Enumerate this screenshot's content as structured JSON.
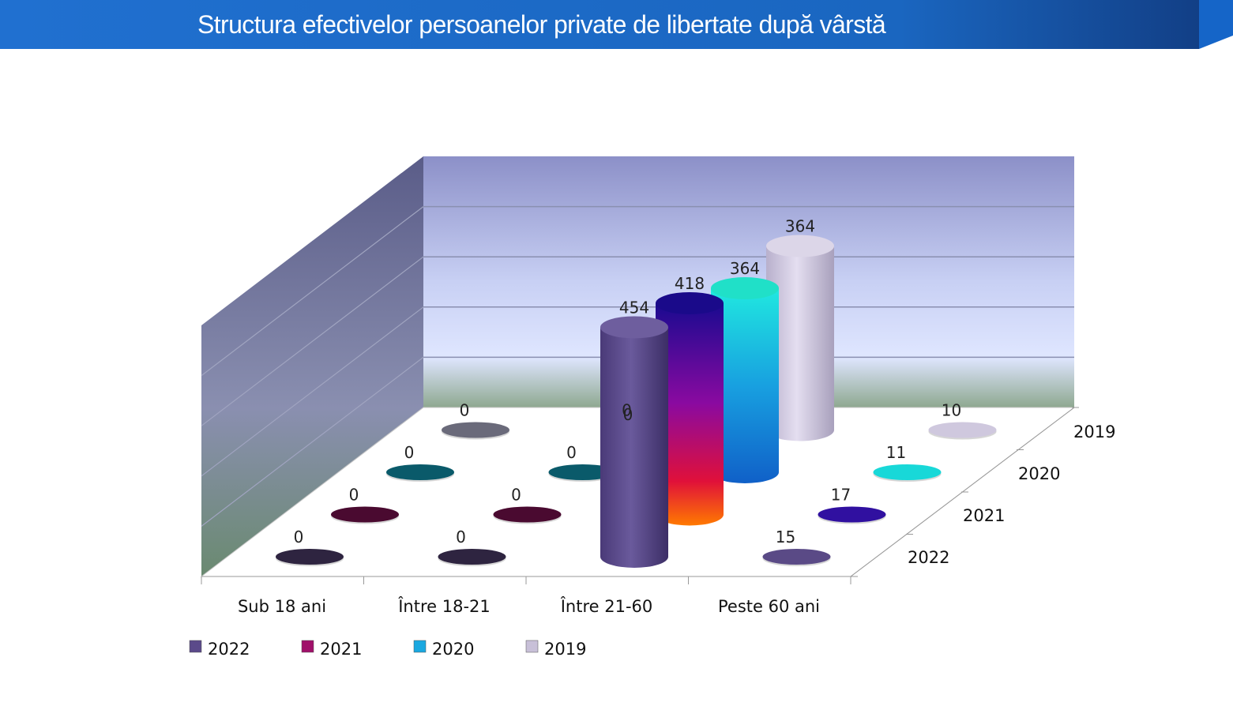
{
  "title": "Structura efectivelor persoanelor private de libertate după vârstă",
  "colors": {
    "header": "#1f6fc4",
    "header_dark": "#164f96",
    "2022": "#5b4a8a",
    "2021_top": "#3a10a0",
    "2021_mid": "#b0107a",
    "2021_bot": "#ff3a00",
    "2020_top": "#1ee0e0",
    "2020_bot": "#1070d0",
    "2019": "#d0c8e0"
  },
  "chart_data": {
    "type": "bar",
    "variant": "3d-cylinder",
    "title": "Structura efectivelor persoanelor private de libertate după vârstă",
    "categories": [
      "Sub 18 ani",
      "Între 18-21",
      "Între 21-60",
      "Peste 60 ani"
    ],
    "series": [
      {
        "name": "2022",
        "values": [
          0,
          0,
          454,
          15
        ]
      },
      {
        "name": "2021",
        "values": [
          0,
          0,
          418,
          17
        ]
      },
      {
        "name": "2020",
        "values": [
          0,
          0,
          364,
          11
        ]
      },
      {
        "name": "2019",
        "values": [
          0,
          0,
          364,
          10
        ]
      }
    ],
    "depth_labels": [
      "2019",
      "2020",
      "2021",
      "2022"
    ],
    "hidden_label_note": "0",
    "legend": [
      "2022",
      "2021",
      "2020",
      "2019"
    ],
    "legend_position": "bottom-left",
    "gridlines": true
  }
}
